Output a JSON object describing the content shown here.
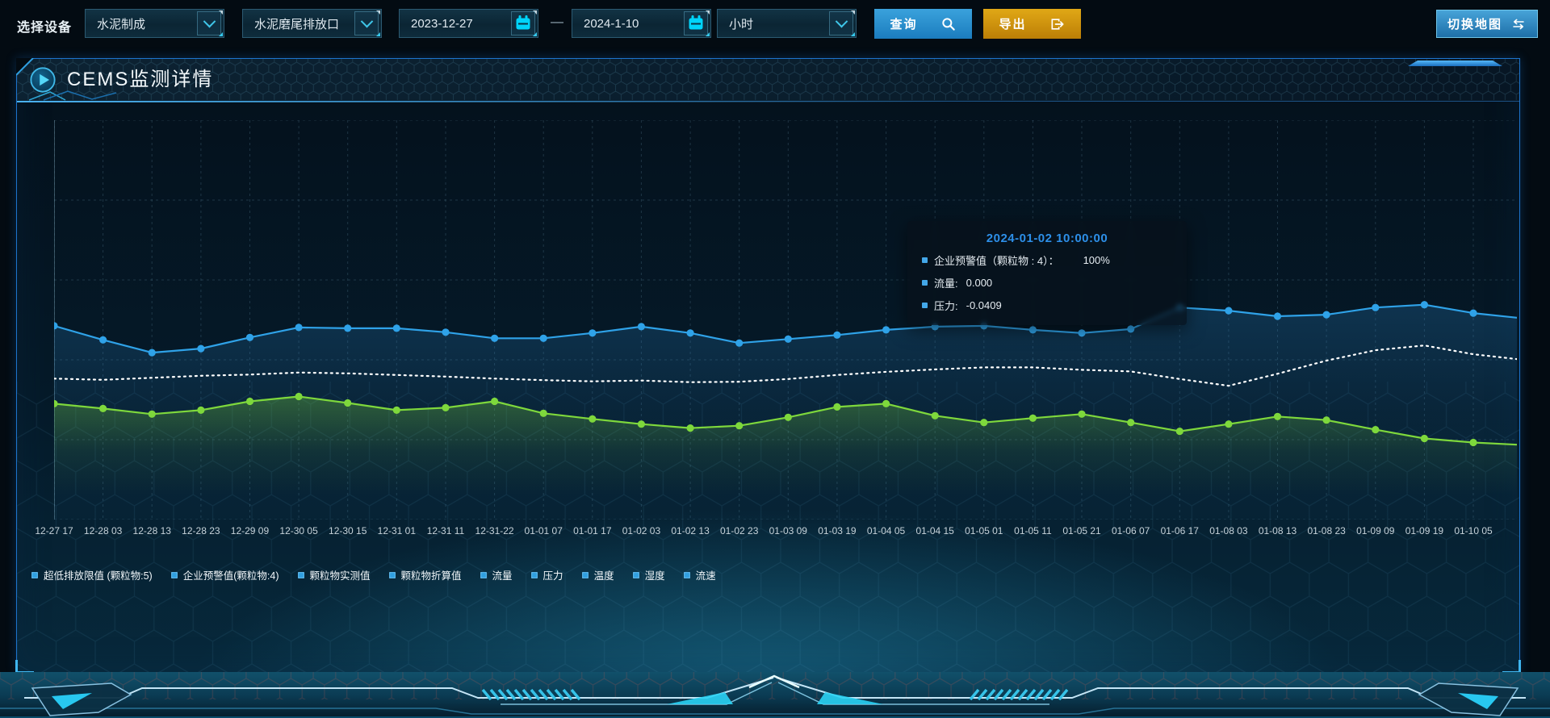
{
  "toolbar": {
    "device_label": "选择设备",
    "device_category": "水泥制成",
    "device_outlet": "水泥磨尾排放口",
    "date_start": "2023-12-27",
    "date_separator": "—",
    "date_end": "2024-1-10",
    "interval": "小时",
    "query_label": "查询",
    "export_label": "导出",
    "switch_map_label": "切换地图"
  },
  "panel": {
    "title": "CEMS监测详情"
  },
  "tooltip": {
    "title": "2024-01-02 10:00:00",
    "rows": [
      {
        "label": "企业预警值（颗粒物 : 4）：",
        "value": "100%"
      },
      {
        "label": "流量:",
        "value": "0.000"
      },
      {
        "label": "压力:",
        "value": "-0.0409"
      }
    ]
  },
  "chart_data": {
    "type": "line",
    "title": "CEMS监测详情",
    "x": [
      "12-27 17",
      "12-28 03",
      "12-28 13",
      "12-28 23",
      "12-29 09",
      "12-30 05",
      "12-30 15",
      "12-31 01",
      "12-31 11",
      "12-31-22",
      "01-01 07",
      "01-01 17",
      "01-02 03",
      "01-02 13",
      "01-02 23",
      "01-03 09",
      "01-03 19",
      "01-04 05",
      "01-04 15",
      "01-05 01",
      "01-05 11",
      "01-05 21",
      "01-06 07",
      "01-06 17",
      "01-08 03",
      "01-08 13",
      "01-08 23",
      "01-09 09",
      "01-09 19",
      "01-10 05"
    ],
    "legend": [
      "超低排放限值 (颗粒物:5)",
      "企业预警值(颗粒物:4)",
      "颗粒物实测值",
      "颗粒物折算值",
      "流量",
      "压力",
      "温度",
      "湿度",
      "流速"
    ],
    "legend_position": "bottom",
    "grid": "dashed",
    "y_axis_labels_visible": false,
    "ylim": [
      0,
      100
    ],
    "series": [
      {
        "name": "企业预警值(颗粒物:4)",
        "color": "#2fa2e8",
        "style": "solid-dots",
        "area": "gBlue",
        "values": [
          48.5,
          45.0,
          41.8,
          42.8,
          45.6,
          48.1,
          47.9,
          47.9,
          46.9,
          45.4,
          45.4,
          46.7,
          48.3,
          46.7,
          44.2,
          45.2,
          46.2,
          47.5,
          48.3,
          48.5,
          47.5,
          46.7,
          47.7,
          53.1,
          52.3,
          50.9,
          51.3,
          53.1,
          53.8,
          51.7
        ]
      },
      {
        "name": "流量",
        "color": "#ffffff",
        "style": "dotted",
        "values": [
          35.3,
          35.0,
          35.5,
          36.0,
          36.3,
          36.8,
          36.6,
          36.2,
          35.8,
          35.3,
          34.9,
          34.6,
          34.8,
          34.4,
          34.5,
          35.2,
          36.2,
          37.0,
          37.6,
          38.1,
          38.1,
          37.5,
          37.1,
          35.2,
          33.5,
          36.5,
          39.8,
          42.4,
          43.6,
          41.4
        ]
      },
      {
        "name": "压力",
        "color": "#7ed83c",
        "style": "solid-dots",
        "area": "gGreen",
        "values": [
          29.0,
          27.8,
          26.4,
          27.4,
          29.6,
          30.8,
          29.2,
          27.4,
          28.0,
          29.6,
          26.6,
          25.2,
          23.9,
          22.9,
          23.5,
          25.6,
          28.2,
          29.0,
          26.0,
          24.3,
          25.4,
          26.4,
          24.3,
          22.1,
          23.9,
          25.8,
          24.9,
          22.5,
          20.3,
          19.3
        ]
      }
    ]
  },
  "icons": {
    "query": "search-icon",
    "export": "export-icon",
    "date": "calendar-icon",
    "select": "chevron-down-icon",
    "switch_map": "swap-arrows-icon",
    "panel_header": "play-icon"
  },
  "colors": {
    "accent_blue": "#2f9fe0",
    "query_button": "#2190d4",
    "export_button": "#d08c0e",
    "panel_border": "#1d74cc",
    "tooltip_title": "#2d8fe8",
    "legend_marker": "#2f9fe0",
    "calendar_icon": "#00d4fa",
    "line_blue": "#2fa2e8",
    "line_white_dotted": "#ffffff",
    "line_green": "#7ed83c"
  }
}
